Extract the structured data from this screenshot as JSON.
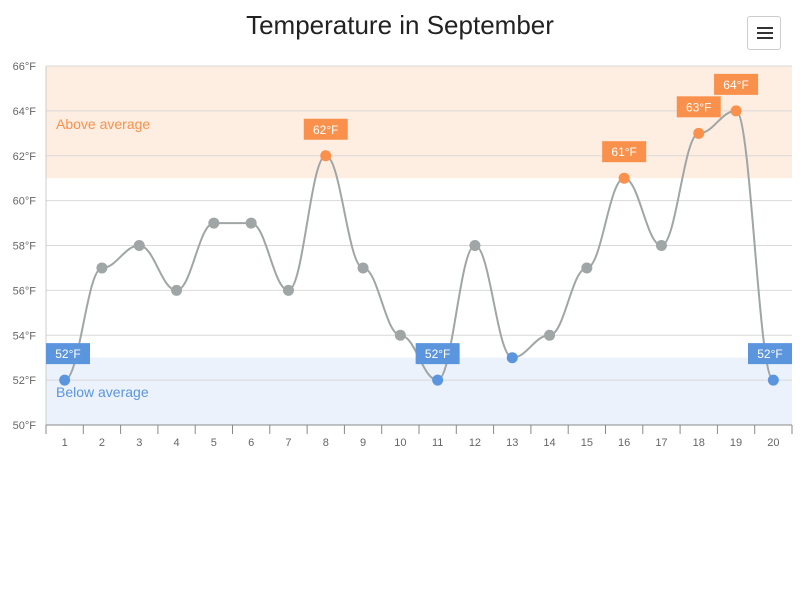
{
  "title": "Temperature in September",
  "menu": {
    "icon": "hamburger-menu-icon"
  },
  "colors": {
    "line": "#a0a5a5",
    "normal_point": "#a0a5a5",
    "above": "#f9914c",
    "below": "#5b95de",
    "above_band": "#feede1",
    "below_band": "#ebf2fb",
    "grid": "#d9d9d9",
    "axis_text": "#666666"
  },
  "chart_data": {
    "type": "line",
    "title": "Temperature in September",
    "xlabel": "",
    "ylabel": "",
    "categories": [
      "1",
      "2",
      "3",
      "4",
      "5",
      "6",
      "7",
      "8",
      "9",
      "10",
      "11",
      "12",
      "13",
      "14",
      "15",
      "16",
      "17",
      "18",
      "19",
      "20"
    ],
    "series": [
      {
        "values": [
          52,
          57,
          58,
          56,
          59,
          59,
          56,
          62,
          57,
          54,
          52,
          58,
          53,
          54,
          57,
          61,
          58,
          63,
          64,
          52
        ]
      }
    ],
    "unit": "°F",
    "ylim": [
      50,
      66
    ],
    "y_ticks": [
      50,
      52,
      54,
      56,
      58,
      60,
      62,
      64,
      66
    ],
    "y_tick_labels": [
      "50°F",
      "52°F",
      "54°F",
      "56°F",
      "58°F",
      "60°F",
      "62°F",
      "64°F",
      "66°F"
    ],
    "grid": true,
    "plot_bands": [
      {
        "from": 61,
        "to": 66,
        "label": "Above average",
        "kind": "above"
      },
      {
        "from": 50,
        "to": 53,
        "label": "Below average",
        "kind": "below"
      }
    ],
    "point_labels": [
      {
        "index": 0,
        "text": "52°F",
        "kind": "below"
      },
      {
        "index": 7,
        "text": "62°F",
        "kind": "above"
      },
      {
        "index": 10,
        "text": "52°F",
        "kind": "below"
      },
      {
        "index": 15,
        "text": "61°F",
        "kind": "above"
      },
      {
        "index": 17,
        "text": "63°F",
        "kind": "above"
      },
      {
        "index": 18,
        "text": "64°F",
        "kind": "above"
      },
      {
        "index": 19,
        "text": "52°F",
        "kind": "below"
      }
    ]
  }
}
